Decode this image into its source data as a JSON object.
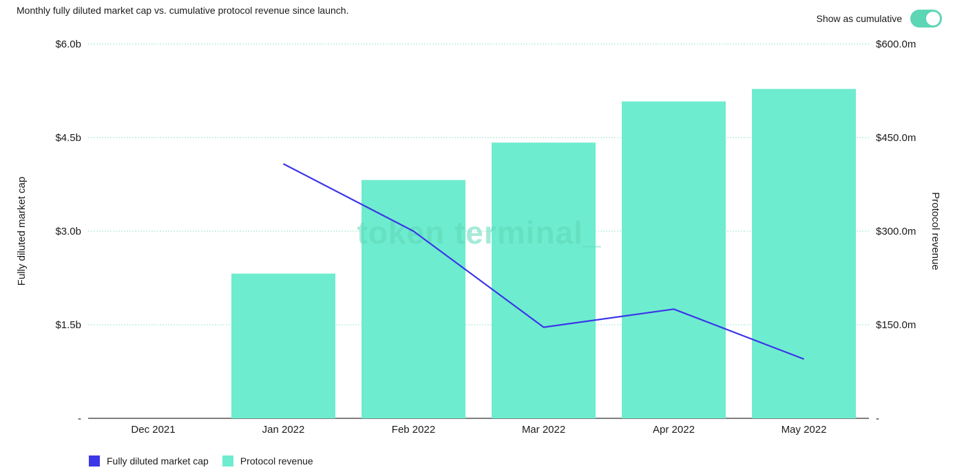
{
  "header": {
    "subtitle": "Monthly fully diluted market cap vs. cumulative protocol revenue since launch.",
    "toggle_label": "Show as cumulative",
    "toggle_on": true
  },
  "colors": {
    "toggle": "#5cd6b5",
    "bar": "#6eeccf",
    "line": "#3b36e8",
    "grid": "#9fe4d2",
    "baseline": "#555555"
  },
  "watermark": "token terminal_",
  "chart_data": {
    "type": "bar",
    "categories": [
      "Dec 2021",
      "Jan 2022",
      "Feb 2022",
      "Mar 2022",
      "Apr 2022",
      "May 2022"
    ],
    "series": [
      {
        "name": "Protocol revenue",
        "type": "bar",
        "axis": "right",
        "values": [
          0,
          232,
          382,
          442,
          508,
          528
        ]
      },
      {
        "name": "Fully diluted market cap",
        "type": "line",
        "axis": "left",
        "values": [
          null,
          4.08,
          3.0,
          1.46,
          1.75,
          0.95
        ]
      }
    ],
    "ylabel_left": "Fully diluted market cap",
    "ylabel_right": "Protocol revenue",
    "yticks_left": [
      "-",
      "$1.5b",
      "$3.0b",
      "$4.5b",
      "$6.0b"
    ],
    "yticks_right": [
      "-",
      "$150.0m",
      "$300.0m",
      "$450.0m",
      "$600.0m"
    ],
    "ylim_left": [
      0,
      6
    ],
    "ylim_right": [
      0,
      600
    ],
    "grid": true,
    "legend": "bottom-left"
  }
}
